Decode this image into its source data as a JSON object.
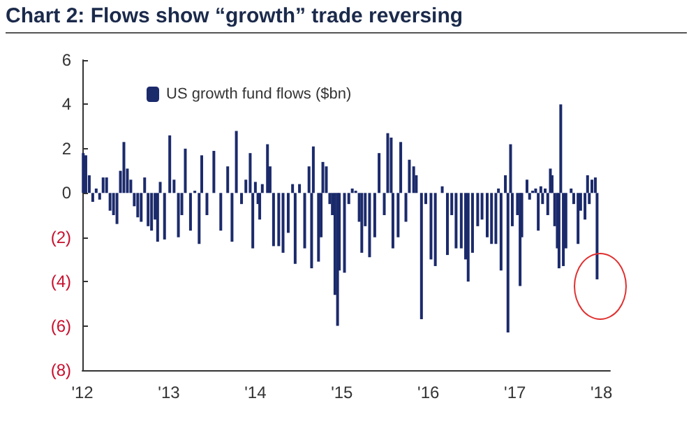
{
  "chart_data": {
    "type": "bar",
    "title": "Chart 2: Flows show “growth” trade reversing",
    "series": [
      {
        "name": "US growth fund flows ($bn)",
        "color": "#1b2a6b",
        "x": [
          2012.01,
          2012.04,
          2012.08,
          2012.12,
          2012.16,
          2012.2,
          2012.24,
          2012.28,
          2012.32,
          2012.36,
          2012.4,
          2012.44,
          2012.48,
          2012.52,
          2012.56,
          2012.6,
          2012.64,
          2012.68,
          2012.72,
          2012.76,
          2012.8,
          2012.84,
          2012.87,
          2012.9,
          2012.95,
          2013.01,
          2013.06,
          2013.11,
          2013.15,
          2013.19,
          2013.25,
          2013.3,
          2013.35,
          2013.38,
          2013.44,
          2013.52,
          2013.6,
          2013.68,
          2013.73,
          2013.78,
          2013.84,
          2013.89,
          2013.94,
          2013.97,
          2014.0,
          2014.03,
          2014.05,
          2014.08,
          2014.14,
          2014.17,
          2014.21,
          2014.27,
          2014.32,
          2014.38,
          2014.43,
          2014.46,
          2014.51,
          2014.57,
          2014.62,
          2014.65,
          2014.67,
          2014.73,
          2014.76,
          2014.78,
          2014.82,
          2014.86,
          2014.89,
          2014.92,
          2014.95,
          2014.97,
          2015.03,
          2015.08,
          2015.12,
          2015.16,
          2015.2,
          2015.23,
          2015.27,
          2015.32,
          2015.38,
          2015.43,
          2015.49,
          2015.53,
          2015.57,
          2015.59,
          2015.65,
          2015.68,
          2015.74,
          2015.78,
          2015.83,
          2015.86,
          2015.92,
          2015.97,
          2016.03,
          2016.08,
          2016.16,
          2016.22,
          2016.27,
          2016.32,
          2016.38,
          2016.43,
          2016.46,
          2016.51,
          2016.57,
          2016.62,
          2016.68,
          2016.73,
          2016.78,
          2016.81,
          2016.84,
          2016.89,
          2016.92,
          2016.95,
          2016.97,
          2017.03,
          2017.06,
          2017.08,
          2017.14,
          2017.17,
          2017.205,
          2017.24,
          2017.27,
          2017.3,
          2017.32,
          2017.35,
          2017.38,
          2017.41,
          2017.43,
          2017.46,
          2017.49,
          2017.51,
          2017.53,
          2017.56,
          2017.59,
          2017.65,
          2017.68,
          2017.73,
          2017.76,
          2017.81,
          2017.84,
          2017.86,
          2017.89,
          2017.93,
          2017.95
        ],
        "values": [
          1.8,
          1.7,
          0.8,
          -0.4,
          0.2,
          -0.3,
          0.7,
          0.7,
          -0.8,
          -1.0,
          -1.4,
          1.0,
          2.3,
          1.1,
          0.6,
          -0.6,
          -1.1,
          -1.3,
          0.7,
          -1.5,
          -1.7,
          -1.2,
          -2.2,
          0.5,
          -2.1,
          2.6,
          0.6,
          -2.0,
          -1.0,
          2.0,
          -1.7,
          0.1,
          -2.3,
          1.7,
          -1.0,
          1.9,
          -1.7,
          1.2,
          -2.2,
          2.8,
          -0.5,
          0.6,
          1.8,
          -2.5,
          0.5,
          -0.5,
          -1.2,
          0.4,
          2.2,
          1.2,
          -2.4,
          -2.4,
          -2.7,
          -1.8,
          0.4,
          -3.2,
          0.4,
          -2.5,
          1.2,
          -3.4,
          2.1,
          -3.1,
          -2.0,
          1.4,
          1.2,
          -0.5,
          -1.0,
          -4.6,
          -6.0,
          -3.5,
          -3.6,
          -0.5,
          0.2,
          0.1,
          -1.3,
          -2.7,
          -1.5,
          -2.9,
          -2.0,
          1.8,
          -1.0,
          2.7,
          2.5,
          -2.5,
          -2.0,
          2.3,
          -1.3,
          1.5,
          1.2,
          0.8,
          -5.7,
          -0.5,
          -3.0,
          -3.3,
          0.3,
          -2.8,
          -1.0,
          -2.5,
          -2.5,
          -3.0,
          -4.0,
          -2.7,
          -1.5,
          -1.2,
          -2.0,
          -2.3,
          -2.3,
          0.2,
          -3.5,
          0.8,
          -6.3,
          2.2,
          -1.5,
          -1.0,
          -4.2,
          -2.0,
          0.6,
          -0.3,
          0.1,
          0.2,
          -1.7,
          0.3,
          -0.5,
          0.2,
          -1.0,
          1.1,
          0.8,
          -1.5,
          -2.5,
          -3.4,
          4.0,
          -3.3,
          -2.5,
          0.2,
          -0.5,
          -2.3,
          -0.8,
          -1.2,
          0.8,
          -0.5,
          0.6,
          0.7,
          -3.9
        ]
      }
    ],
    "xlim": [
      2012,
      2018.1
    ],
    "xticks": [
      {
        "value": 2012,
        "label": "'12"
      },
      {
        "value": 2013,
        "label": "'13"
      },
      {
        "value": 2014,
        "label": "'14"
      },
      {
        "value": 2015,
        "label": "'15"
      },
      {
        "value": 2016,
        "label": "'16"
      },
      {
        "value": 2017,
        "label": "'17"
      },
      {
        "value": 2018,
        "label": "'18"
      }
    ],
    "ylim": [
      -8,
      6
    ],
    "yticks": [
      {
        "value": -8,
        "label": "(8)"
      },
      {
        "value": -6,
        "label": "(6)"
      },
      {
        "value": -4,
        "label": "(4)"
      },
      {
        "value": -2,
        "label": "(2)"
      },
      0,
      2,
      4,
      6
    ],
    "legend": "top left",
    "grid": false
  }
}
